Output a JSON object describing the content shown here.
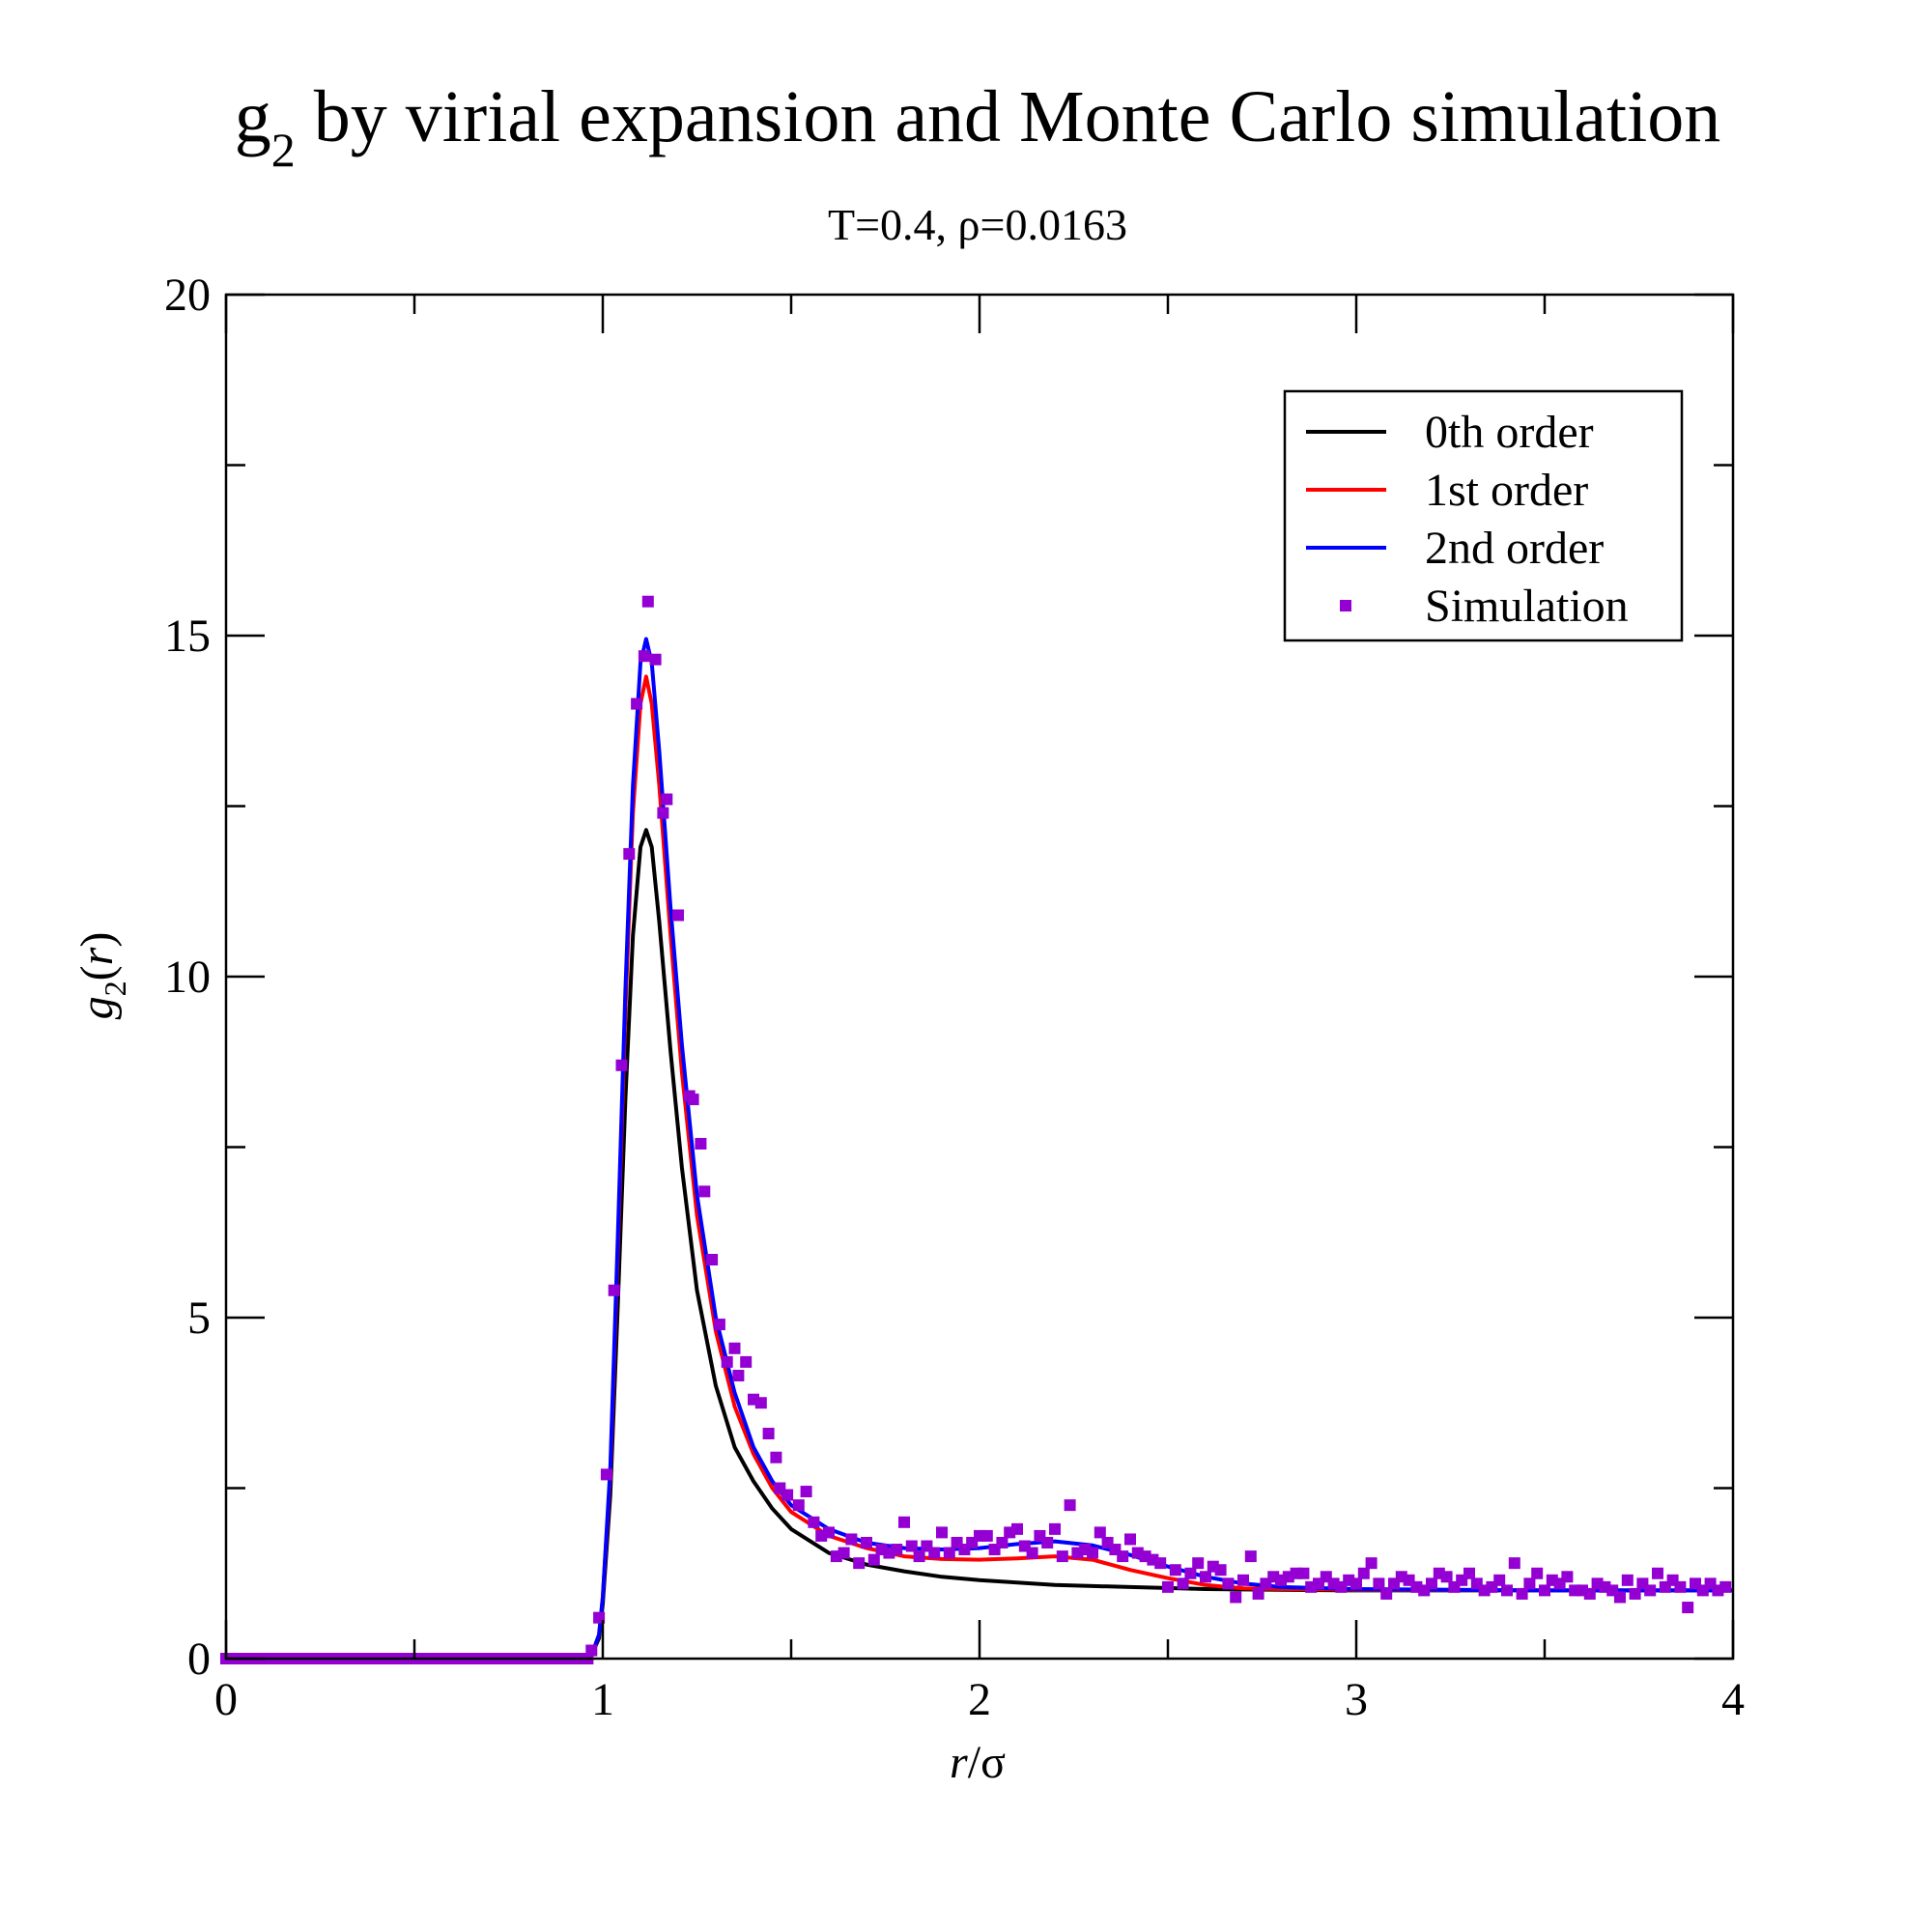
{
  "title": {
    "main": "g",
    "sub": "2",
    "rest": " by virial expansion and Monte Carlo simulation"
  },
  "subtitle": "T=0.4, ρ=0.0163",
  "chart_data": {
    "type": "line",
    "title": "g2 by virial expansion and Monte Carlo simulation",
    "subtitle": "T=0.4, ρ=0.0163",
    "xlabel": {
      "main": "r",
      "rest": "/σ"
    },
    "ylabel": {
      "g": "g",
      "sub": "2",
      "open": "(",
      "r": "r",
      "close": ")"
    },
    "xlim": [
      0,
      4
    ],
    "ylim": [
      0,
      20
    ],
    "x_ticks": [
      0,
      1,
      2,
      3,
      4
    ],
    "y_ticks": [
      0,
      5,
      10,
      15,
      20
    ],
    "x_tick_labels": [
      "0",
      "1",
      "2",
      "3",
      "4"
    ],
    "y_tick_labels": [
      "0",
      "5",
      "10",
      "15",
      "20"
    ],
    "x_minor_step": 0.5,
    "y_minor_step": 2.5,
    "grid": false,
    "legend_position": "top-right",
    "series": [
      {
        "name": "0th order",
        "kind": "line",
        "color": "#000000",
        "points": [
          [
            0,
            0
          ],
          [
            0.95,
            0
          ],
          [
            0.97,
            0.05
          ],
          [
            0.99,
            0.3
          ],
          [
            1.0,
            0.8
          ],
          [
            1.02,
            2.4
          ],
          [
            1.04,
            5.2
          ],
          [
            1.06,
            8.2
          ],
          [
            1.08,
            10.6
          ],
          [
            1.1,
            11.9
          ],
          [
            1.115,
            12.15
          ],
          [
            1.13,
            11.9
          ],
          [
            1.15,
            10.8
          ],
          [
            1.18,
            8.9
          ],
          [
            1.21,
            7.2
          ],
          [
            1.25,
            5.4
          ],
          [
            1.3,
            4.0
          ],
          [
            1.35,
            3.1
          ],
          [
            1.4,
            2.6
          ],
          [
            1.45,
            2.2
          ],
          [
            1.5,
            1.9
          ],
          [
            1.6,
            1.55
          ],
          [
            1.7,
            1.38
          ],
          [
            1.8,
            1.28
          ],
          [
            1.9,
            1.2
          ],
          [
            2.0,
            1.15
          ],
          [
            2.2,
            1.08
          ],
          [
            2.4,
            1.05
          ],
          [
            2.6,
            1.02
          ],
          [
            3.0,
            1.0
          ],
          [
            3.5,
            1.0
          ],
          [
            4.0,
            1.0
          ]
        ]
      },
      {
        "name": "1st order",
        "kind": "line",
        "color": "#ff0000",
        "points": [
          [
            0,
            0
          ],
          [
            0.95,
            0
          ],
          [
            0.97,
            0.05
          ],
          [
            0.99,
            0.35
          ],
          [
            1.0,
            0.9
          ],
          [
            1.02,
            2.7
          ],
          [
            1.04,
            6.0
          ],
          [
            1.06,
            9.5
          ],
          [
            1.08,
            12.4
          ],
          [
            1.1,
            14.0
          ],
          [
            1.115,
            14.4
          ],
          [
            1.13,
            14.0
          ],
          [
            1.15,
            12.8
          ],
          [
            1.18,
            10.6
          ],
          [
            1.21,
            8.6
          ],
          [
            1.25,
            6.5
          ],
          [
            1.3,
            4.8
          ],
          [
            1.35,
            3.7
          ],
          [
            1.4,
            3.0
          ],
          [
            1.45,
            2.5
          ],
          [
            1.5,
            2.15
          ],
          [
            1.6,
            1.8
          ],
          [
            1.7,
            1.62
          ],
          [
            1.8,
            1.5
          ],
          [
            1.9,
            1.46
          ],
          [
            2.0,
            1.45
          ],
          [
            2.1,
            1.47
          ],
          [
            2.2,
            1.5
          ],
          [
            2.3,
            1.45
          ],
          [
            2.4,
            1.3
          ],
          [
            2.5,
            1.18
          ],
          [
            2.6,
            1.08
          ],
          [
            2.7,
            1.03
          ],
          [
            2.8,
            1.02
          ],
          [
            3.0,
            1.01
          ],
          [
            3.5,
            1.0
          ],
          [
            4.0,
            1.0
          ]
        ]
      },
      {
        "name": "2nd order",
        "kind": "line",
        "color": "#0000ff",
        "points": [
          [
            0,
            0
          ],
          [
            0.95,
            0
          ],
          [
            0.97,
            0.05
          ],
          [
            0.99,
            0.35
          ],
          [
            1.0,
            0.9
          ],
          [
            1.02,
            2.8
          ],
          [
            1.04,
            6.2
          ],
          [
            1.06,
            9.8
          ],
          [
            1.08,
            12.8
          ],
          [
            1.1,
            14.6
          ],
          [
            1.115,
            14.95
          ],
          [
            1.13,
            14.6
          ],
          [
            1.15,
            13.3
          ],
          [
            1.18,
            11.0
          ],
          [
            1.21,
            9.0
          ],
          [
            1.25,
            6.8
          ],
          [
            1.3,
            5.0
          ],
          [
            1.35,
            3.9
          ],
          [
            1.4,
            3.1
          ],
          [
            1.45,
            2.6
          ],
          [
            1.5,
            2.25
          ],
          [
            1.6,
            1.9
          ],
          [
            1.7,
            1.7
          ],
          [
            1.8,
            1.62
          ],
          [
            1.9,
            1.6
          ],
          [
            2.0,
            1.62
          ],
          [
            2.1,
            1.68
          ],
          [
            2.2,
            1.72
          ],
          [
            2.3,
            1.66
          ],
          [
            2.4,
            1.52
          ],
          [
            2.5,
            1.35
          ],
          [
            2.6,
            1.2
          ],
          [
            2.7,
            1.1
          ],
          [
            2.8,
            1.05
          ],
          [
            3.0,
            1.02
          ],
          [
            3.5,
            1.0
          ],
          [
            4.0,
            1.0
          ]
        ]
      },
      {
        "name": "Simulation",
        "kind": "scatter",
        "color": "#9400d3",
        "points": [
          [
            0,
            0
          ],
          [
            0.02,
            0
          ],
          [
            0.04,
            0
          ],
          [
            0.06,
            0
          ],
          [
            0.08,
            0
          ],
          [
            0.1,
            0
          ],
          [
            0.12,
            0
          ],
          [
            0.14,
            0
          ],
          [
            0.16,
            0
          ],
          [
            0.18,
            0
          ],
          [
            0.2,
            0
          ],
          [
            0.22,
            0
          ],
          [
            0.24,
            0
          ],
          [
            0.26,
            0
          ],
          [
            0.28,
            0
          ],
          [
            0.3,
            0
          ],
          [
            0.32,
            0
          ],
          [
            0.34,
            0
          ],
          [
            0.36,
            0
          ],
          [
            0.38,
            0
          ],
          [
            0.4,
            0
          ],
          [
            0.42,
            0
          ],
          [
            0.44,
            0
          ],
          [
            0.46,
            0
          ],
          [
            0.48,
            0
          ],
          [
            0.5,
            0
          ],
          [
            0.52,
            0
          ],
          [
            0.54,
            0
          ],
          [
            0.56,
            0
          ],
          [
            0.58,
            0
          ],
          [
            0.6,
            0
          ],
          [
            0.62,
            0
          ],
          [
            0.64,
            0
          ],
          [
            0.66,
            0
          ],
          [
            0.68,
            0
          ],
          [
            0.7,
            0
          ],
          [
            0.72,
            0
          ],
          [
            0.74,
            0
          ],
          [
            0.76,
            0
          ],
          [
            0.78,
            0
          ],
          [
            0.8,
            0
          ],
          [
            0.82,
            0
          ],
          [
            0.84,
            0
          ],
          [
            0.86,
            0
          ],
          [
            0.88,
            0
          ],
          [
            0.9,
            0
          ],
          [
            0.92,
            0
          ],
          [
            0.94,
            0
          ],
          [
            0.96,
            0
          ],
          [
            0.97,
            0.12
          ],
          [
            0.99,
            0.6
          ],
          [
            1.01,
            2.7
          ],
          [
            1.03,
            5.4
          ],
          [
            1.05,
            8.7
          ],
          [
            1.07,
            11.8
          ],
          [
            1.09,
            14.0
          ],
          [
            1.11,
            14.7
          ],
          [
            1.12,
            15.5
          ],
          [
            1.14,
            14.65
          ],
          [
            1.16,
            12.4
          ],
          [
            1.17,
            12.6
          ],
          [
            1.2,
            10.9
          ],
          [
            1.23,
            8.25
          ],
          [
            1.24,
            8.2
          ],
          [
            1.26,
            7.55
          ],
          [
            1.27,
            6.85
          ],
          [
            1.29,
            5.85
          ],
          [
            1.31,
            4.9
          ],
          [
            1.33,
            4.35
          ],
          [
            1.35,
            4.55
          ],
          [
            1.36,
            4.15
          ],
          [
            1.38,
            4.35
          ],
          [
            1.4,
            3.8
          ],
          [
            1.42,
            3.75
          ],
          [
            1.44,
            3.3
          ],
          [
            1.46,
            2.95
          ],
          [
            1.47,
            2.5
          ],
          [
            1.49,
            2.4
          ],
          [
            1.52,
            2.25
          ],
          [
            1.54,
            2.45
          ],
          [
            1.56,
            2.0
          ],
          [
            1.58,
            1.8
          ],
          [
            1.6,
            1.85
          ],
          [
            1.62,
            1.5
          ],
          [
            1.64,
            1.55
          ],
          [
            1.66,
            1.75
          ],
          [
            1.68,
            1.4
          ],
          [
            1.7,
            1.7
          ],
          [
            1.72,
            1.45
          ],
          [
            1.74,
            1.6
          ],
          [
            1.76,
            1.55
          ],
          [
            1.78,
            1.6
          ],
          [
            1.8,
            2.0
          ],
          [
            1.82,
            1.65
          ],
          [
            1.84,
            1.5
          ],
          [
            1.86,
            1.65
          ],
          [
            1.88,
            1.55
          ],
          [
            1.9,
            1.85
          ],
          [
            1.92,
            1.55
          ],
          [
            1.94,
            1.7
          ],
          [
            1.96,
            1.6
          ],
          [
            1.98,
            1.7
          ],
          [
            2.0,
            1.8
          ],
          [
            2.02,
            1.8
          ],
          [
            2.04,
            1.6
          ],
          [
            2.06,
            1.7
          ],
          [
            2.08,
            1.85
          ],
          [
            2.1,
            1.9
          ],
          [
            2.12,
            1.65
          ],
          [
            2.14,
            1.55
          ],
          [
            2.16,
            1.8
          ],
          [
            2.18,
            1.7
          ],
          [
            2.2,
            1.9
          ],
          [
            2.22,
            1.5
          ],
          [
            2.24,
            2.25
          ],
          [
            2.26,
            1.55
          ],
          [
            2.28,
            1.6
          ],
          [
            2.3,
            1.55
          ],
          [
            2.32,
            1.85
          ],
          [
            2.34,
            1.7
          ],
          [
            2.36,
            1.6
          ],
          [
            2.38,
            1.5
          ],
          [
            2.4,
            1.75
          ],
          [
            2.42,
            1.55
          ],
          [
            2.44,
            1.5
          ],
          [
            2.46,
            1.45
          ],
          [
            2.48,
            1.4
          ],
          [
            2.5,
            1.05
          ],
          [
            2.52,
            1.3
          ],
          [
            2.54,
            1.1
          ],
          [
            2.56,
            1.25
          ],
          [
            2.58,
            1.4
          ],
          [
            2.6,
            1.2
          ],
          [
            2.62,
            1.35
          ],
          [
            2.64,
            1.3
          ],
          [
            2.66,
            1.1
          ],
          [
            2.68,
            0.9
          ],
          [
            2.7,
            1.15
          ],
          [
            2.72,
            1.5
          ],
          [
            2.74,
            0.95
          ],
          [
            2.76,
            1.1
          ],
          [
            2.78,
            1.2
          ],
          [
            2.8,
            1.15
          ],
          [
            2.82,
            1.2
          ],
          [
            2.84,
            1.25
          ],
          [
            2.86,
            1.25
          ],
          [
            2.88,
            1.05
          ],
          [
            2.9,
            1.1
          ],
          [
            2.92,
            1.2
          ],
          [
            2.94,
            1.1
          ],
          [
            2.96,
            1.05
          ],
          [
            2.98,
            1.15
          ],
          [
            3.0,
            1.1
          ],
          [
            3.02,
            1.25
          ],
          [
            3.04,
            1.4
          ],
          [
            3.06,
            1.1
          ],
          [
            3.08,
            0.95
          ],
          [
            3.1,
            1.1
          ],
          [
            3.12,
            1.2
          ],
          [
            3.14,
            1.15
          ],
          [
            3.16,
            1.05
          ],
          [
            3.18,
            1.0
          ],
          [
            3.2,
            1.1
          ],
          [
            3.22,
            1.25
          ],
          [
            3.24,
            1.2
          ],
          [
            3.26,
            1.05
          ],
          [
            3.28,
            1.15
          ],
          [
            3.3,
            1.25
          ],
          [
            3.32,
            1.1
          ],
          [
            3.34,
            1.0
          ],
          [
            3.36,
            1.05
          ],
          [
            3.38,
            1.15
          ],
          [
            3.4,
            1.0
          ],
          [
            3.42,
            1.4
          ],
          [
            3.44,
            0.95
          ],
          [
            3.46,
            1.1
          ],
          [
            3.48,
            1.25
          ],
          [
            3.5,
            1.0
          ],
          [
            3.52,
            1.15
          ],
          [
            3.54,
            1.1
          ],
          [
            3.56,
            1.2
          ],
          [
            3.58,
            1.0
          ],
          [
            3.6,
            1.0
          ],
          [
            3.62,
            0.95
          ],
          [
            3.64,
            1.1
          ],
          [
            3.66,
            1.05
          ],
          [
            3.68,
            1.0
          ],
          [
            3.7,
            0.9
          ],
          [
            3.72,
            1.15
          ],
          [
            3.74,
            0.95
          ],
          [
            3.76,
            1.1
          ],
          [
            3.78,
            1.0
          ],
          [
            3.8,
            1.25
          ],
          [
            3.82,
            1.05
          ],
          [
            3.84,
            1.15
          ],
          [
            3.86,
            1.05
          ],
          [
            3.88,
            0.75
          ],
          [
            3.9,
            1.1
          ],
          [
            3.92,
            1.0
          ],
          [
            3.94,
            1.1
          ],
          [
            3.96,
            1.0
          ],
          [
            3.98,
            1.05
          ]
        ]
      }
    ]
  }
}
